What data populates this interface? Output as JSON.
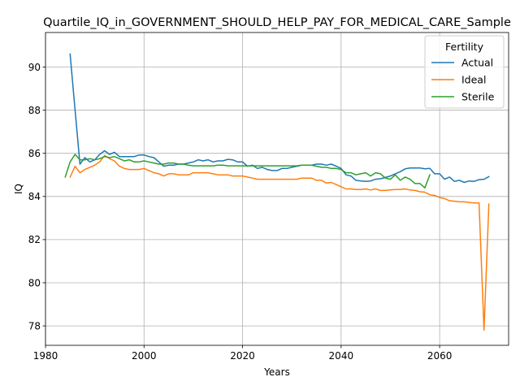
{
  "chart_data": {
    "type": "line",
    "title": "Quartile_IQ_in_GOVERNMENT_SHOULD_HELP_PAY_FOR_MEDICAL_CARE_Sample",
    "xlabel": "Years",
    "ylabel": "IQ",
    "xlim": [
      1980,
      2074
    ],
    "ylim": [
      77.1,
      91.6
    ],
    "xticks": [
      1980,
      2000,
      2020,
      2040,
      2060
    ],
    "yticks": [
      78,
      80,
      82,
      84,
      86,
      88,
      90
    ],
    "grid": true,
    "legend": {
      "title": "Fertility",
      "position": "top-right"
    },
    "series": [
      {
        "name": "Actual",
        "color": "#1f77b4",
        "x": [
          1985,
          1986,
          1987,
          1988,
          1989,
          1990,
          1991,
          1992,
          1993,
          1994,
          1995,
          1996,
          1997,
          1998,
          1999,
          2000,
          2001,
          2002,
          2003,
          2004,
          2005,
          2006,
          2007,
          2008,
          2009,
          2010,
          2011,
          2012,
          2013,
          2014,
          2015,
          2016,
          2017,
          2018,
          2019,
          2020,
          2021,
          2022,
          2023,
          2024,
          2025,
          2026,
          2027,
          2028,
          2029,
          2030,
          2031,
          2032,
          2033,
          2034,
          2035,
          2036,
          2037,
          2038,
          2039,
          2040,
          2041,
          2042,
          2043,
          2044,
          2045,
          2046,
          2047,
          2048,
          2049,
          2050,
          2051,
          2052,
          2053,
          2054,
          2055,
          2056,
          2057,
          2058,
          2059,
          2060,
          2061,
          2062,
          2063,
          2064,
          2065,
          2066,
          2067,
          2068,
          2069,
          2070
        ],
        "y": [
          90.6,
          88.0,
          85.5,
          85.8,
          85.6,
          85.7,
          85.95,
          86.12,
          85.95,
          86.05,
          85.85,
          85.85,
          85.85,
          85.85,
          85.92,
          85.92,
          85.85,
          85.8,
          85.6,
          85.4,
          85.45,
          85.45,
          85.5,
          85.5,
          85.55,
          85.6,
          85.7,
          85.65,
          85.7,
          85.6,
          85.65,
          85.65,
          85.72,
          85.7,
          85.6,
          85.6,
          85.4,
          85.45,
          85.3,
          85.35,
          85.25,
          85.2,
          85.2,
          85.3,
          85.3,
          85.35,
          85.4,
          85.45,
          85.45,
          85.45,
          85.5,
          85.5,
          85.45,
          85.5,
          85.4,
          85.3,
          85.0,
          84.95,
          84.75,
          84.72,
          84.7,
          84.72,
          84.8,
          84.82,
          84.88,
          84.95,
          85.05,
          85.15,
          85.28,
          85.32,
          85.32,
          85.32,
          85.28,
          85.3,
          85.05,
          85.05,
          84.8,
          84.9,
          84.7,
          84.75,
          84.65,
          84.72,
          84.7,
          84.78,
          84.8,
          84.92
        ]
      },
      {
        "name": "Ideal",
        "color": "#ff7f0e",
        "x": [
          1985,
          1986,
          1987,
          1988,
          1989,
          1990,
          1991,
          1992,
          1993,
          1994,
          1995,
          1996,
          1997,
          1998,
          1999,
          2000,
          2001,
          2002,
          2003,
          2004,
          2005,
          2006,
          2007,
          2008,
          2009,
          2010,
          2011,
          2012,
          2013,
          2014,
          2015,
          2016,
          2017,
          2018,
          2019,
          2020,
          2021,
          2022,
          2023,
          2024,
          2025,
          2026,
          2027,
          2028,
          2029,
          2030,
          2031,
          2032,
          2033,
          2034,
          2035,
          2036,
          2037,
          2038,
          2039,
          2040,
          2041,
          2042,
          2043,
          2044,
          2045,
          2046,
          2047,
          2048,
          2049,
          2050,
          2051,
          2052,
          2053,
          2054,
          2055,
          2056,
          2057,
          2058,
          2059,
          2060,
          2061,
          2062,
          2063,
          2064,
          2065,
          2066,
          2067,
          2068,
          2069,
          2070
        ],
        "y": [
          84.9,
          85.4,
          85.1,
          85.25,
          85.35,
          85.45,
          85.6,
          85.9,
          85.75,
          85.65,
          85.4,
          85.3,
          85.25,
          85.25,
          85.25,
          85.3,
          85.2,
          85.1,
          85.05,
          84.95,
          85.05,
          85.05,
          85.0,
          85.0,
          85.0,
          85.1,
          85.1,
          85.1,
          85.1,
          85.05,
          85.0,
          85.0,
          85.0,
          84.95,
          84.95,
          84.95,
          84.9,
          84.85,
          84.8,
          84.8,
          84.8,
          84.8,
          84.8,
          84.8,
          84.8,
          84.8,
          84.8,
          84.85,
          84.85,
          84.85,
          84.75,
          84.75,
          84.62,
          84.65,
          84.55,
          84.45,
          84.35,
          84.35,
          84.32,
          84.32,
          84.35,
          84.3,
          84.35,
          84.28,
          84.28,
          84.3,
          84.32,
          84.32,
          84.35,
          84.3,
          84.28,
          84.22,
          84.2,
          84.08,
          84.05,
          83.95,
          83.9,
          83.8,
          83.78,
          83.75,
          83.75,
          83.72,
          83.7,
          83.7,
          77.8,
          83.65
        ]
      },
      {
        "name": "Sterile",
        "color": "#2ca02c",
        "x": [
          1984,
          1985,
          1986,
          1987,
          1988,
          1989,
          1990,
          1991,
          1992,
          1993,
          1994,
          1995,
          1996,
          1997,
          1998,
          1999,
          2000,
          2001,
          2002,
          2003,
          2004,
          2005,
          2006,
          2007,
          2008,
          2009,
          2010,
          2011,
          2012,
          2013,
          2014,
          2015,
          2016,
          2017,
          2018,
          2019,
          2020,
          2021,
          2022,
          2023,
          2024,
          2025,
          2026,
          2027,
          2028,
          2029,
          2030,
          2031,
          2032,
          2033,
          2034,
          2035,
          2036,
          2037,
          2038,
          2039,
          2040,
          2041,
          2042,
          2043,
          2044,
          2045,
          2046,
          2047,
          2048,
          2049,
          2050,
          2051,
          2052,
          2053,
          2054,
          2055,
          2056,
          2057,
          2058
        ],
        "y": [
          84.9,
          85.6,
          85.95,
          85.7,
          85.7,
          85.75,
          85.7,
          85.75,
          85.85,
          85.8,
          85.85,
          85.75,
          85.65,
          85.7,
          85.6,
          85.6,
          85.65,
          85.6,
          85.55,
          85.5,
          85.5,
          85.55,
          85.55,
          85.5,
          85.5,
          85.45,
          85.42,
          85.42,
          85.42,
          85.42,
          85.42,
          85.45,
          85.45,
          85.42,
          85.42,
          85.42,
          85.42,
          85.42,
          85.42,
          85.42,
          85.42,
          85.42,
          85.42,
          85.42,
          85.42,
          85.42,
          85.42,
          85.42,
          85.45,
          85.45,
          85.45,
          85.4,
          85.35,
          85.35,
          85.3,
          85.3,
          85.25,
          85.1,
          85.1,
          85.0,
          85.05,
          85.1,
          84.95,
          85.1,
          85.05,
          84.85,
          84.8,
          85.0,
          84.75,
          84.9,
          84.8,
          84.6,
          84.6,
          84.4,
          85.0
        ]
      }
    ]
  }
}
